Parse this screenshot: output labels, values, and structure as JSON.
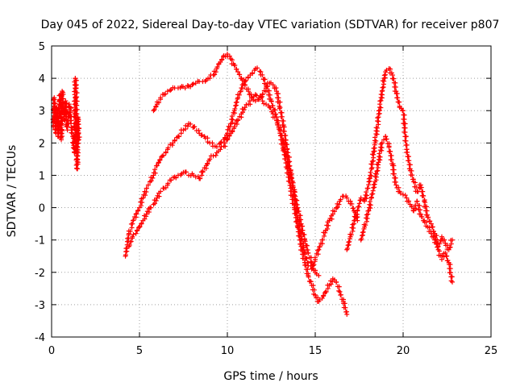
{
  "chart_data": {
    "type": "scatter",
    "title": "Day 045 of 2022, Sidereal Day-to-day VTEC variation (SDTVAR) for receiver p807",
    "xlabel": "GPS time / hours",
    "ylabel": "SDTVAR / TECUs",
    "xlim": [
      0,
      25
    ],
    "ylim": [
      -4,
      5
    ],
    "xticks": [
      "0",
      "5",
      "10",
      "15",
      "20",
      "25"
    ],
    "yticks": [
      "-4",
      "-3",
      "-2",
      "-1",
      "0",
      "1",
      "2",
      "3",
      "4",
      "5"
    ],
    "grid": true,
    "marker": "+",
    "color": "#ff0000",
    "series": [
      {
        "name": "SDTVAR",
        "x": [
          0.1,
          0.15,
          0.2,
          0.25,
          0.3,
          0.35,
          0.4,
          0.45,
          0.5,
          0.55,
          0.6,
          0.65,
          0.7,
          0.75,
          0.8,
          0.85,
          0.9,
          0.95,
          1.0,
          1.05,
          1.1,
          1.15,
          1.2,
          1.25,
          1.3,
          1.35,
          1.4,
          1.45,
          1.5,
          1.55
        ],
        "y": [
          2.5,
          3.4,
          2.8,
          2.3,
          3.1,
          2.6,
          2.2,
          3.3,
          3.5,
          2.1,
          3.6,
          3.2,
          2.9,
          2.7,
          3.3,
          2.5,
          2.4,
          2.8,
          3.2,
          3.1,
          2.6,
          2.4,
          2.2,
          2.0,
          1.7,
          4.0,
          3.7,
          1.2,
          2.8,
          2.1
        ]
      },
      {
        "name": "SDTVAR",
        "x": [
          4.2,
          4.4,
          4.6,
          4.8,
          5.0,
          5.2,
          5.4,
          5.6,
          5.8,
          6.0,
          6.3,
          6.6,
          6.9,
          7.2,
          7.5,
          7.8,
          8.1,
          8.4,
          8.7,
          9.0,
          9.3,
          9.6,
          9.8,
          10.0,
          10.2,
          10.4,
          10.6,
          10.8,
          11.0,
          11.3,
          11.6,
          11.9,
          12.2,
          12.5,
          12.8,
          13.0,
          13.2,
          13.4,
          13.6,
          13.8,
          14.0,
          14.2,
          14.4,
          14.6,
          14.8,
          15.0,
          15.2,
          15.4,
          15.6,
          15.8,
          16.0,
          16.2,
          16.4,
          16.6,
          16.8
        ],
        "y": [
          -1.5,
          -0.8,
          -0.5,
          -0.2,
          0.0,
          0.3,
          0.6,
          0.8,
          1.0,
          1.3,
          1.6,
          1.8,
          2.0,
          2.2,
          2.4,
          2.6,
          2.5,
          2.3,
          2.2,
          2.0,
          1.9,
          2.0,
          2.1,
          2.3,
          2.6,
          3.0,
          3.4,
          3.7,
          3.9,
          4.1,
          4.3,
          4.2,
          3.8,
          3.3,
          2.8,
          2.3,
          1.8,
          1.2,
          0.6,
          0.0,
          -0.6,
          -1.2,
          -1.7,
          -2.1,
          -2.4,
          -2.7,
          -2.9,
          -2.8,
          -2.6,
          -2.4,
          -2.2,
          -2.3,
          -2.6,
          -2.9,
          -3.3
        ]
      },
      {
        "name": "SDTVAR",
        "x": [
          5.8,
          6.0,
          6.2,
          6.4,
          6.6,
          6.8,
          7.0,
          7.2,
          7.4,
          7.6,
          7.8,
          8.0,
          8.2,
          8.4,
          8.6,
          8.8,
          9.0,
          9.2,
          9.4,
          9.6,
          9.8,
          10.0,
          10.2,
          10.4,
          10.6,
          10.8,
          11.0,
          11.2,
          11.4,
          11.6,
          11.8,
          12.0,
          12.2,
          12.4,
          12.6,
          12.8,
          13.0,
          13.2,
          13.4,
          13.6,
          13.8,
          14.0,
          14.2,
          14.4,
          14.6,
          14.8,
          15.0,
          15.2,
          15.4,
          15.6,
          15.8,
          16.0,
          16.2,
          16.4,
          16.6,
          16.8,
          17.0,
          17.2,
          17.4
        ],
        "y": [
          3.0,
          3.2,
          3.4,
          3.5,
          3.6,
          3.65,
          3.7,
          3.7,
          3.75,
          3.7,
          3.75,
          3.8,
          3.85,
          3.9,
          3.9,
          3.95,
          4.0,
          4.1,
          4.3,
          4.5,
          4.7,
          4.75,
          4.6,
          4.4,
          4.2,
          4.0,
          3.8,
          3.6,
          3.4,
          3.3,
          3.35,
          3.5,
          3.7,
          3.85,
          3.8,
          3.6,
          3.1,
          2.5,
          1.8,
          1.1,
          0.4,
          -0.3,
          -0.9,
          -1.4,
          -1.8,
          -1.9,
          -1.6,
          -1.3,
          -1.0,
          -0.7,
          -0.4,
          -0.2,
          0.0,
          0.2,
          0.35,
          0.3,
          0.2,
          -0.1,
          -0.4
        ]
      },
      {
        "name": "SDTVAR",
        "x": [
          4.4,
          4.6,
          4.8,
          5.0,
          5.2,
          5.4,
          5.6,
          5.8,
          6.0,
          6.2,
          6.4,
          6.6,
          6.8,
          7.0,
          7.2,
          7.4,
          7.6,
          7.8,
          8.0,
          8.2,
          8.4,
          8.6,
          8.8,
          9.0,
          9.2,
          9.4,
          9.6,
          9.8,
          10.0,
          10.2,
          10.4,
          10.6,
          10.8,
          11.0,
          11.2,
          11.4,
          11.6,
          11.8,
          12.0,
          12.2,
          12.4,
          12.6,
          12.8,
          13.0,
          13.2,
          13.4,
          13.6,
          13.8,
          14.0,
          14.2,
          14.4,
          14.6,
          14.8,
          15.0,
          15.2
        ],
        "y": [
          -1.2,
          -0.9,
          -0.8,
          -0.6,
          -0.4,
          -0.2,
          0.0,
          0.1,
          0.3,
          0.5,
          0.6,
          0.7,
          0.85,
          0.95,
          1.0,
          1.05,
          1.1,
          1.0,
          1.05,
          0.95,
          0.9,
          1.1,
          1.3,
          1.5,
          1.6,
          1.7,
          1.8,
          1.9,
          2.1,
          2.3,
          2.5,
          2.7,
          2.9,
          3.1,
          3.2,
          3.4,
          3.5,
          3.4,
          3.3,
          3.2,
          3.1,
          2.9,
          2.7,
          2.4,
          2.0,
          1.5,
          1.0,
          0.5,
          0.0,
          -0.5,
          -1.0,
          -1.4,
          -1.7,
          -2.0,
          -2.1
        ]
      },
      {
        "name": "SDTVAR",
        "x": [
          16.8,
          17.0,
          17.2,
          17.4,
          17.6,
          17.8,
          18.0,
          18.2,
          18.4,
          18.6,
          18.8,
          19.0,
          19.2,
          19.4,
          19.6,
          19.8,
          20.0,
          20.2,
          20.4,
          20.6,
          20.8,
          21.0,
          21.2,
          21.4,
          21.6,
          21.8,
          22.0,
          22.2,
          22.4,
          22.6,
          22.8
        ],
        "y": [
          -1.3,
          -0.9,
          -0.5,
          -0.1,
          0.3,
          0.2,
          0.6,
          1.2,
          2.0,
          2.8,
          3.6,
          4.2,
          4.3,
          4.1,
          3.6,
          3.1,
          3.0,
          1.8,
          1.2,
          0.8,
          0.5,
          0.7,
          0.2,
          -0.3,
          -0.5,
          -0.8,
          -1.2,
          -0.9,
          -1.1,
          -1.3,
          -1.0
        ]
      },
      {
        "name": "SDTVAR",
        "x": [
          17.6,
          17.8,
          18.0,
          18.2,
          18.4,
          18.6,
          18.8,
          19.0,
          19.2,
          19.4,
          19.6,
          19.8,
          20.0,
          20.2,
          20.4,
          20.6,
          20.8,
          21.0,
          21.2,
          21.4,
          21.6,
          21.8,
          22.0,
          22.2,
          22.4,
          22.6,
          22.8
        ],
        "y": [
          -1.0,
          -0.6,
          -0.2,
          0.3,
          0.8,
          1.4,
          2.0,
          2.2,
          1.9,
          1.3,
          0.7,
          0.5,
          0.4,
          0.3,
          0.1,
          -0.1,
          0.2,
          -0.2,
          -0.4,
          -0.6,
          -0.8,
          -1.0,
          -1.3,
          -1.6,
          -1.4,
          -1.7,
          -2.3
        ]
      }
    ]
  }
}
